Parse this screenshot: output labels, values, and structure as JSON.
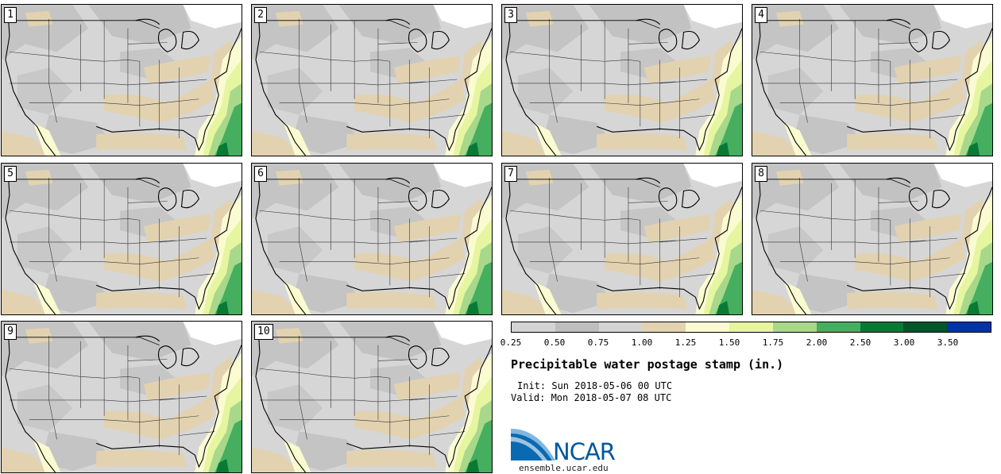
{
  "panels": [
    {
      "label": "1"
    },
    {
      "label": "2"
    },
    {
      "label": "3"
    },
    {
      "label": "4"
    },
    {
      "label": "5"
    },
    {
      "label": "6"
    },
    {
      "label": "7"
    },
    {
      "label": "8"
    },
    {
      "label": "9"
    },
    {
      "label": "10"
    }
  ],
  "legend": {
    "colors": [
      "#d4d4d4",
      "#bebebe",
      "#d4d4d4",
      "#e2d2b0",
      "#fbfbd2",
      "#e6f5a0",
      "#a8d88a",
      "#45ae5f",
      "#087a36",
      "#03552a",
      "#0033aa"
    ],
    "labels": [
      "0.25",
      "0.50",
      "0.75",
      "1.00",
      "1.25",
      "1.50",
      "1.75",
      "2.00",
      "2.50",
      "3.00",
      "3.50"
    ]
  },
  "info": {
    "title": "Precipitable water postage stamp (in.)",
    "init": "Init: Sun 2018-05-06 00 UTC",
    "valid": "Valid: Mon 2018-05-07 08 UTC"
  },
  "logo": {
    "name": "NCAR",
    "website": "ensemble.ucar.edu"
  }
}
